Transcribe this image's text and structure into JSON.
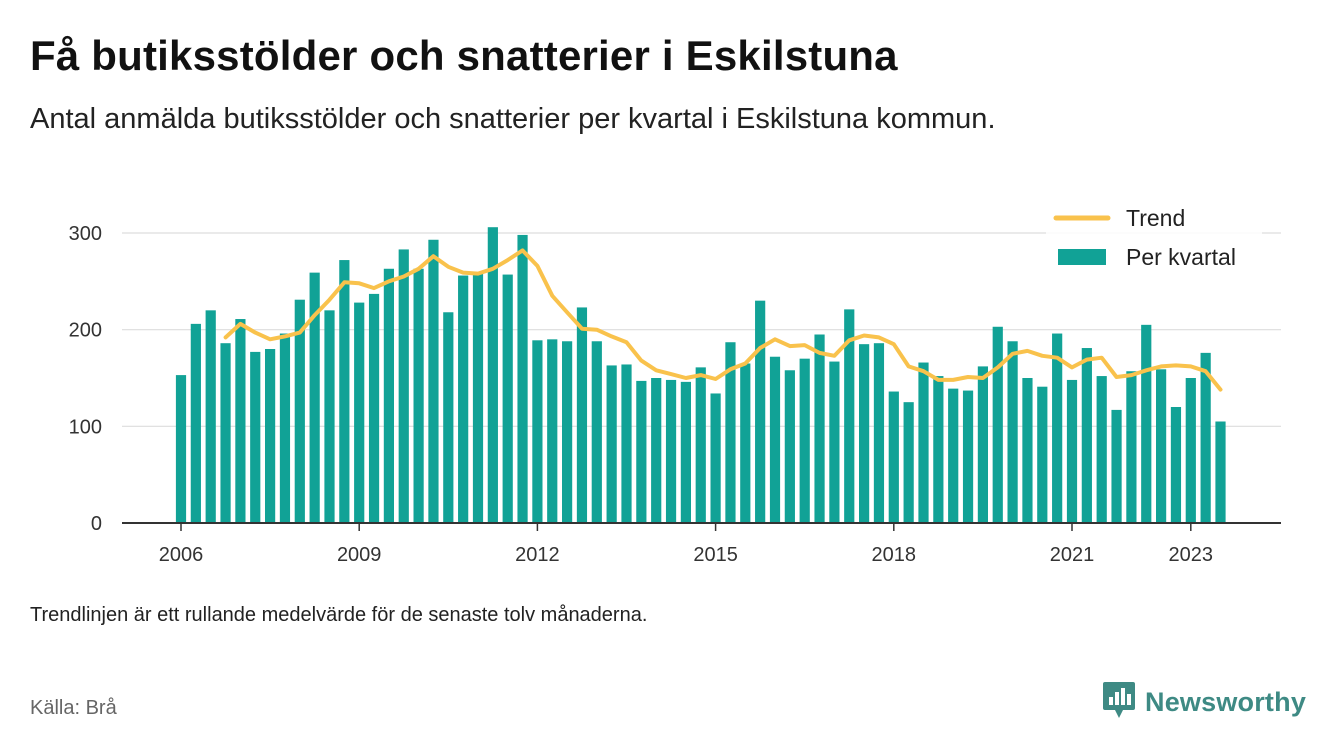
{
  "header": {
    "title": "Få butiksstölder och snatterier i Eskilstuna",
    "subtitle": "Antal anmälda butiksstölder och snatterier per kvartal i Eskilstuna kommun."
  },
  "footer": {
    "note": "Trendlinjen är ett rullande medelvärde för de senaste tolv månaderna.",
    "source": "Källa: Brå",
    "brand": "Newsworthy",
    "brand_icon": "newsworthy-logo-icon"
  },
  "colors": {
    "bar": "#11a296",
    "trend": "#f9c24c",
    "brand": "#3e8a84",
    "grid": "#dddddd",
    "axis": "#333333"
  },
  "chart_data": {
    "type": "bar",
    "title": "Få butiksstölder och snatterier i Eskilstuna",
    "subtitle": "Antal anmälda butiksstölder och snatterier per kvartal i Eskilstuna kommun.",
    "x_start": 2006.0,
    "x_step": 0.25,
    "xlim": [
      2006,
      2024
    ],
    "ylim": [
      0,
      300
    ],
    "y_ticks": [
      0,
      100,
      200,
      300
    ],
    "x_ticks": [
      2006,
      2009,
      2012,
      2015,
      2018,
      2021,
      2023
    ],
    "grid": true,
    "legend_position": "top-right",
    "series": [
      {
        "name": "Per kvartal",
        "type": "bar",
        "values": [
          153,
          206,
          220,
          186,
          211,
          177,
          180,
          196,
          231,
          259,
          220,
          272,
          228,
          237,
          263,
          283,
          263,
          293,
          218,
          256,
          258,
          306,
          257,
          298,
          189,
          190,
          188,
          223,
          188,
          163,
          164,
          147,
          150,
          148,
          146,
          161,
          134,
          187,
          165,
          230,
          172,
          158,
          170,
          195,
          167,
          221,
          185,
          186,
          136,
          125,
          166,
          152,
          139,
          137,
          162,
          203,
          188,
          150,
          141,
          196,
          148,
          181,
          152,
          117,
          157,
          205,
          159,
          120,
          150,
          176,
          105
        ]
      },
      {
        "name": "Trend",
        "type": "line",
        "values": [
          null,
          null,
          null,
          192,
          206,
          197,
          190,
          193,
          197,
          215,
          231,
          249,
          248,
          243,
          250,
          255,
          263,
          276,
          265,
          259,
          258,
          263,
          272,
          282,
          266,
          235,
          218,
          201,
          200,
          193,
          187,
          168,
          158,
          154,
          150,
          153,
          149,
          159,
          165,
          181,
          190,
          183,
          184,
          176,
          173,
          189,
          194,
          192,
          185,
          162,
          157,
          148,
          148,
          151,
          150,
          161,
          175,
          178,
          173,
          171,
          161,
          169,
          171,
          151,
          153,
          158,
          162,
          163,
          162,
          157,
          138
        ]
      }
    ]
  }
}
